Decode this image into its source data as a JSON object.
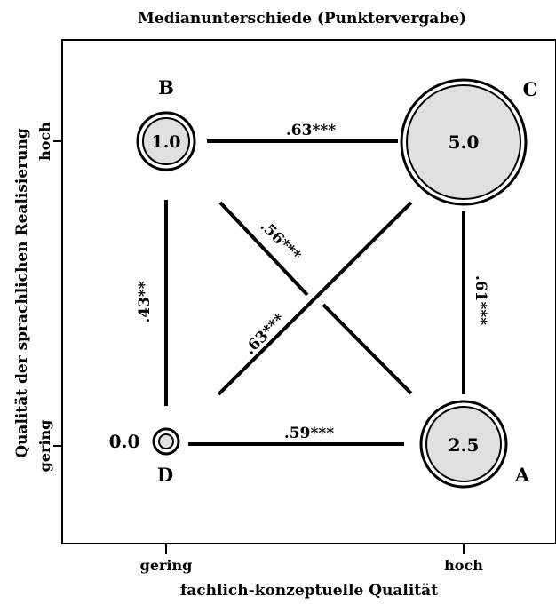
{
  "title": "Medianunterschiede (Punktervergabe)",
  "x_axis": {
    "label": "fachlich-konzeptuelle Qualität",
    "ticks": [
      "gering",
      "hoch"
    ]
  },
  "y_axis": {
    "label": "Qualität der sprachlichen Realisierung",
    "ticks": [
      "gering",
      "hoch"
    ]
  },
  "nodes": [
    {
      "id": "B",
      "value": "1.0"
    },
    {
      "id": "C",
      "value": "5.0"
    },
    {
      "id": "A",
      "value": "2.5"
    },
    {
      "id": "D",
      "value": "0.0"
    }
  ],
  "edges": [
    {
      "pair": "B-C",
      "label": ".63***"
    },
    {
      "pair": "D-A",
      "label": ".59***"
    },
    {
      "pair": "B-D",
      "label": ".43**"
    },
    {
      "pair": "C-A",
      "label": ".61***"
    },
    {
      "pair": "B-A",
      "label": ".56***"
    },
    {
      "pair": "D-C",
      "label": ".63***"
    }
  ],
  "colors": {
    "node_fill": "#e0e0e0",
    "line": "#000000",
    "background": "#ffffff"
  }
}
